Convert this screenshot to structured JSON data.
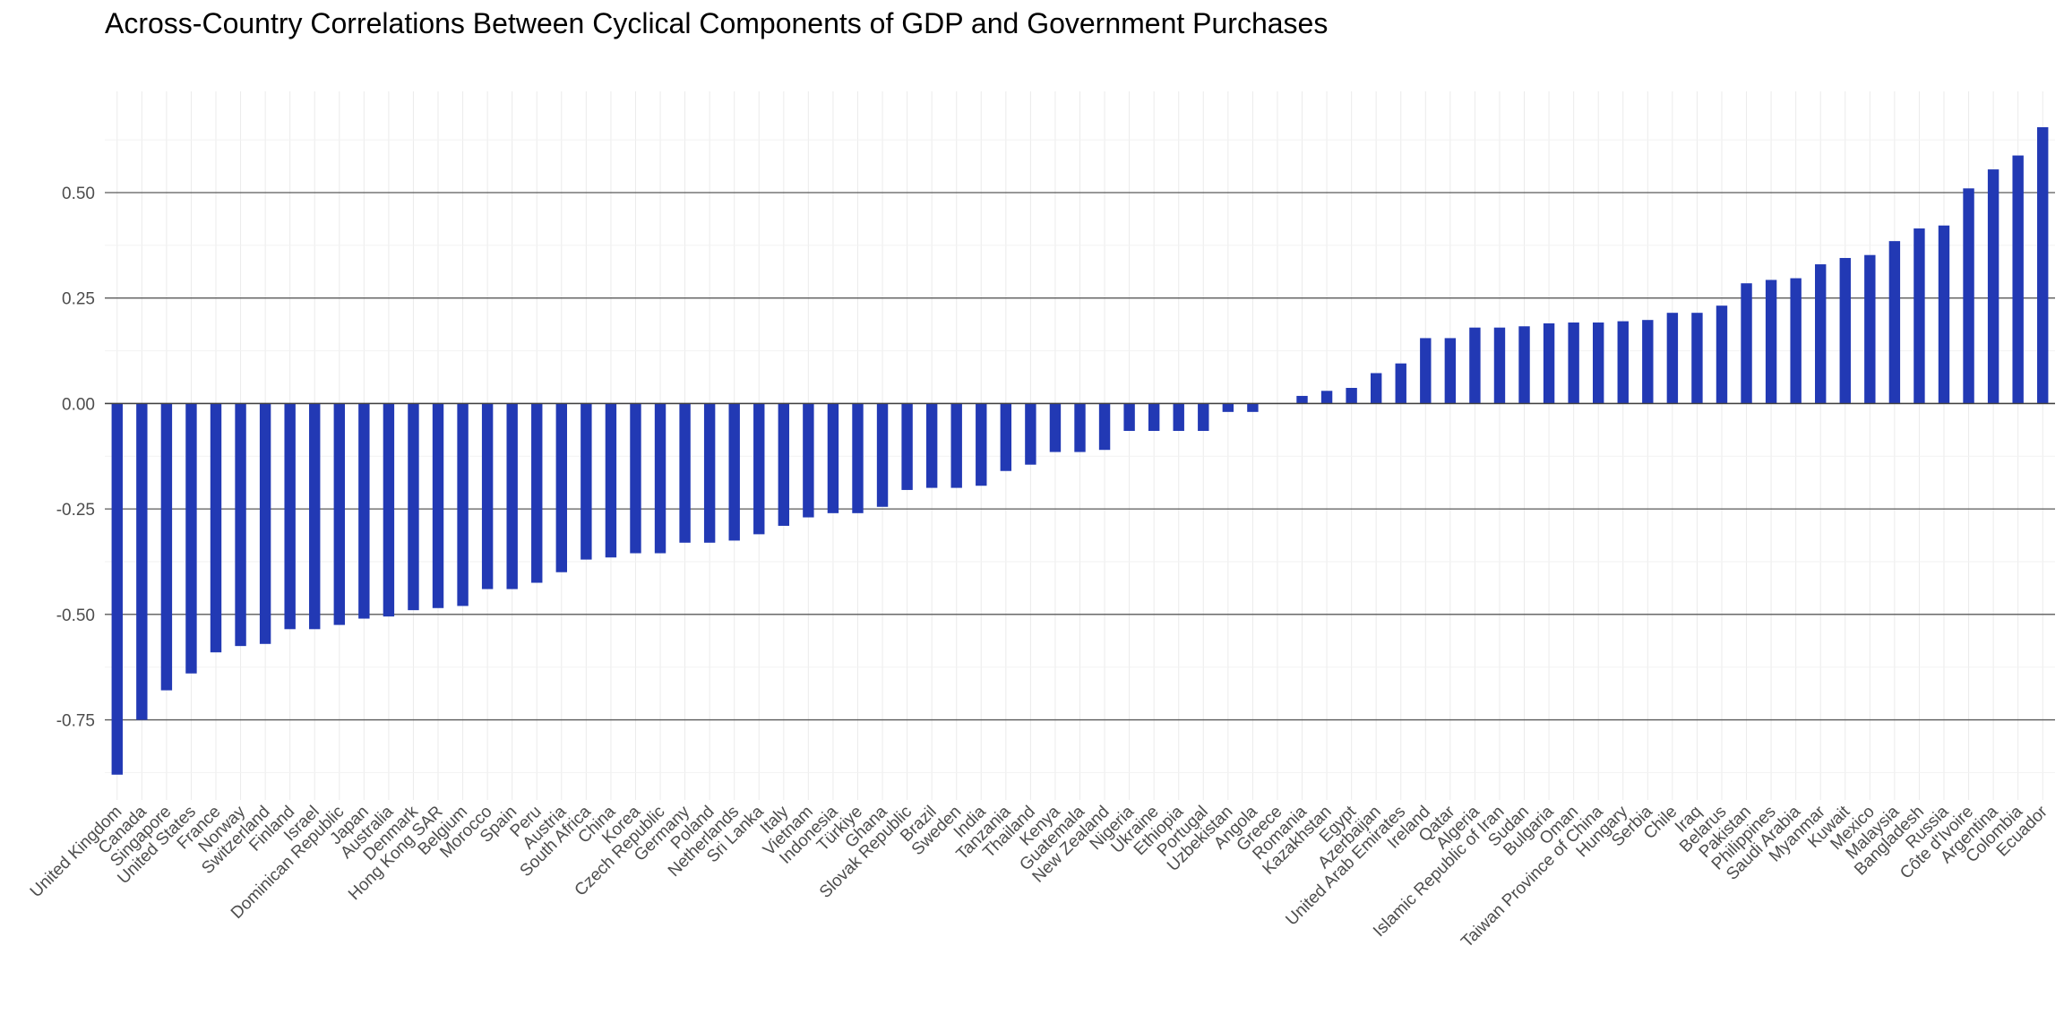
{
  "chart_data": {
    "type": "bar",
    "title": "Across-Country Correlations Between Cyclical Components of GDP and Government Purchases",
    "xlabel": "",
    "ylabel": "",
    "ylim": [
      -0.94,
      0.74
    ],
    "yticks": [
      -0.75,
      -0.5,
      -0.25,
      0.0,
      0.25,
      0.5
    ],
    "ytick_labels": [
      "-0.75",
      "-0.50",
      "-0.25",
      "0.00",
      "0.25",
      "0.50"
    ],
    "bar_color": "#2239b4",
    "grid": true,
    "legend": "none",
    "categories": [
      "United Kingdom",
      "Canada",
      "Singapore",
      "United States",
      "France",
      "Norway",
      "Switzerland",
      "Finland",
      "Israel",
      "Dominican Republic",
      "Japan",
      "Australia",
      "Denmark",
      "Hong Kong SAR",
      "Belgium",
      "Morocco",
      "Spain",
      "Peru",
      "Austria",
      "South Africa",
      "China",
      "Korea",
      "Czech Republic",
      "Germany",
      "Poland",
      "Netherlands",
      "Sri Lanka",
      "Italy",
      "Vietnam",
      "Indonesia",
      "Türkiye",
      "Ghana",
      "Slovak Republic",
      "Brazil",
      "Sweden",
      "India",
      "Tanzania",
      "Thailand",
      "Kenya",
      "Guatemala",
      "New Zealand",
      "Nigeria",
      "Ukraine",
      "Ethiopia",
      "Portugal",
      "Uzbekistan",
      "Angola",
      "Greece",
      "Romania",
      "Kazakhstan",
      "Egypt",
      "Azerbaijan",
      "United Arab Emirates",
      "Ireland",
      "Qatar",
      "Algeria",
      "Islamic Republic of Iran",
      "Sudan",
      "Bulgaria",
      "Oman",
      "Taiwan Province of China",
      "Hungary",
      "Serbia",
      "Chile",
      "Iraq",
      "Belarus",
      "Pakistan",
      "Philippines",
      "Saudi Arabia",
      "Myanmar",
      "Kuwait",
      "Mexico",
      "Malaysia",
      "Bangladesh",
      "Russia",
      "Côte d'Ivoire",
      "Argentina",
      "Colombia",
      "Ecuador"
    ],
    "values": [
      -0.88,
      -0.75,
      -0.68,
      -0.64,
      -0.59,
      -0.575,
      -0.57,
      -0.535,
      -0.535,
      -0.525,
      -0.51,
      -0.505,
      -0.49,
      -0.485,
      -0.48,
      -0.44,
      -0.44,
      -0.425,
      -0.4,
      -0.37,
      -0.365,
      -0.355,
      -0.355,
      -0.33,
      -0.33,
      -0.325,
      -0.31,
      -0.29,
      -0.27,
      -0.26,
      -0.26,
      -0.245,
      -0.205,
      -0.2,
      -0.2,
      -0.195,
      -0.16,
      -0.145,
      -0.115,
      -0.115,
      -0.11,
      -0.065,
      -0.065,
      -0.065,
      -0.065,
      -0.02,
      -0.02,
      0.0,
      0.018,
      0.03,
      0.037,
      0.072,
      0.095,
      0.155,
      0.155,
      0.18,
      0.18,
      0.183,
      0.19,
      0.192,
      0.192,
      0.195,
      0.198,
      0.215,
      0.215,
      0.232,
      0.285,
      0.293,
      0.297,
      0.33,
      0.345,
      0.352,
      0.385,
      0.415,
      0.422,
      0.51,
      0.555,
      0.588,
      0.655
    ]
  }
}
